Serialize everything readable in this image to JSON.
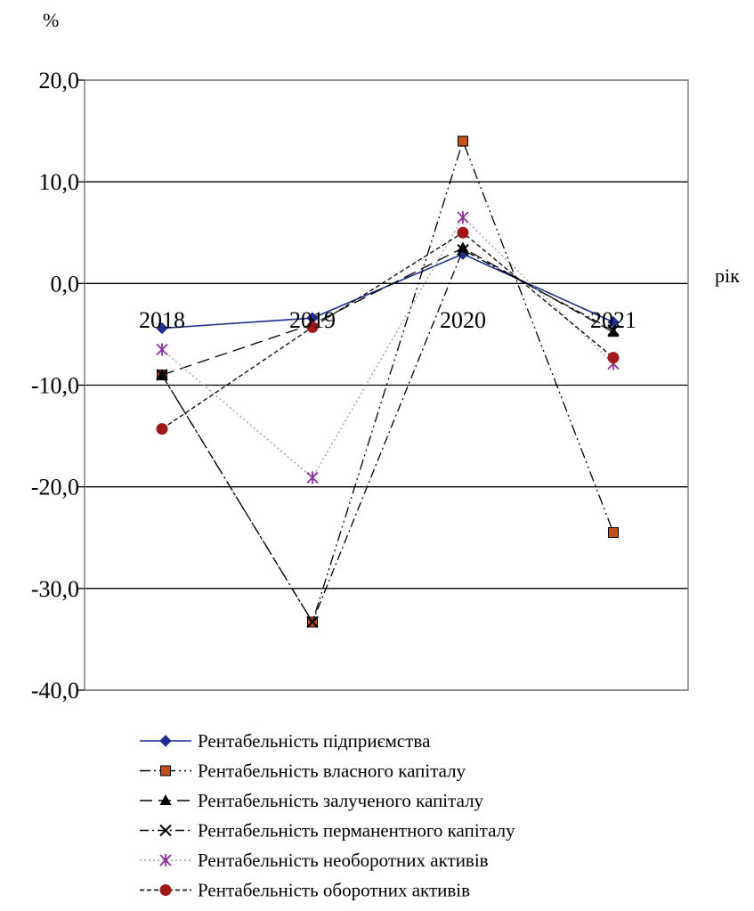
{
  "chart_data": {
    "type": "line",
    "ylabel": "%",
    "xlabel": "рік",
    "categories": [
      "2018",
      "2019",
      "2020",
      "2021"
    ],
    "ylim": [
      -40,
      20
    ],
    "yticks": [
      "20,0",
      "10,0",
      "0,0",
      "-10,0",
      "-20,0",
      "-30,0",
      "-40,0"
    ],
    "ytick_values": [
      20,
      10,
      0,
      -10,
      -20,
      -30,
      -40
    ],
    "grid": true,
    "legend_position": "bottom",
    "series": [
      {
        "name": "Рентабельність підприємства",
        "values": [
          -4.4,
          -3.4,
          2.9,
          -3.8
        ],
        "color": "#1f2f8f",
        "marker": "diamond",
        "dash": "solid"
      },
      {
        "name": "Рентабельність власного капіталу",
        "values": [
          -9.0,
          -33.3,
          14.0,
          -24.5
        ],
        "color": "#000000",
        "marker": "square",
        "markerFill": "#c0501b",
        "dash": "dash-dot-dot"
      },
      {
        "name": "Рентабельність залученого капіталу",
        "values": [
          -9.0,
          -4.0,
          3.5,
          -4.8
        ],
        "color": "#000000",
        "marker": "triangle",
        "dash": "long-dash"
      },
      {
        "name": "Рентабельність перманентного капіталу",
        "values": [
          -9.0,
          -33.3,
          3.3,
          -4.6
        ],
        "color": "#000000",
        "marker": "x",
        "dash": "dash-dot"
      },
      {
        "name": "Рентабельність необоротних активів",
        "values": [
          -6.5,
          -19.1,
          6.5,
          -7.9
        ],
        "color": "#9a9a9a",
        "marker": "star",
        "markerColor": "#8b2f9e",
        "dash": "dot"
      },
      {
        "name": "Рентабельність оборотних активів",
        "values": [
          -14.3,
          -4.3,
          5.0,
          -7.3
        ],
        "color": "#000000",
        "marker": "circle",
        "markerFill": "#a01818",
        "dash": "short-dash"
      }
    ]
  }
}
